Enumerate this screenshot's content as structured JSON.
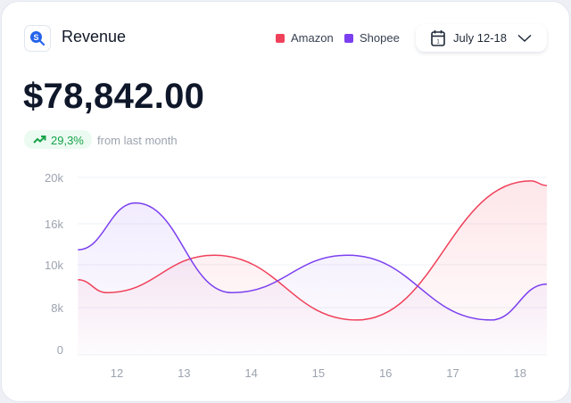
{
  "header": {
    "title": "Revenue",
    "logo_icon": "dollar-search-icon",
    "date_range": "July 12-18",
    "calendar_icon": "calendar-icon",
    "dropdown_icon": "chevron-down-icon"
  },
  "summary": {
    "amount": "$78,842.00",
    "change": "29,3%",
    "change_icon": "trending-up-icon",
    "change_note": "from last month"
  },
  "colors": {
    "amazon": "#f0415a",
    "shopee": "#7b3ff0",
    "positive": "#16a34a"
  },
  "chart_data": {
    "type": "line",
    "smooth": true,
    "area_fill": true,
    "grid": true,
    "legend_placement": "top",
    "x_ticks": [
      "12",
      "13",
      "14",
      "15",
      "16",
      "17",
      "18"
    ],
    "y_ticks": [
      "0",
      "8k",
      "10k",
      "16k",
      "20k"
    ],
    "y_tick_values": [
      0,
      8000,
      10000,
      16000,
      20000
    ],
    "series": [
      {
        "name": "Amazon",
        "color": "#f0415a",
        "points": [
          [
            11.42,
            9300
          ],
          [
            11.85,
            8700
          ],
          [
            13.45,
            11400
          ],
          [
            15.57,
            5900
          ],
          [
            18.16,
            19700
          ],
          [
            18.4,
            19300
          ]
        ]
      },
      {
        "name": "Shopee",
        "color": "#7b3ff0",
        "points": [
          [
            11.42,
            12200
          ],
          [
            12.28,
            17800
          ],
          [
            13.71,
            8700
          ],
          [
            15.44,
            11400
          ],
          [
            17.57,
            5900
          ],
          [
            18.4,
            9100
          ]
        ]
      }
    ]
  }
}
